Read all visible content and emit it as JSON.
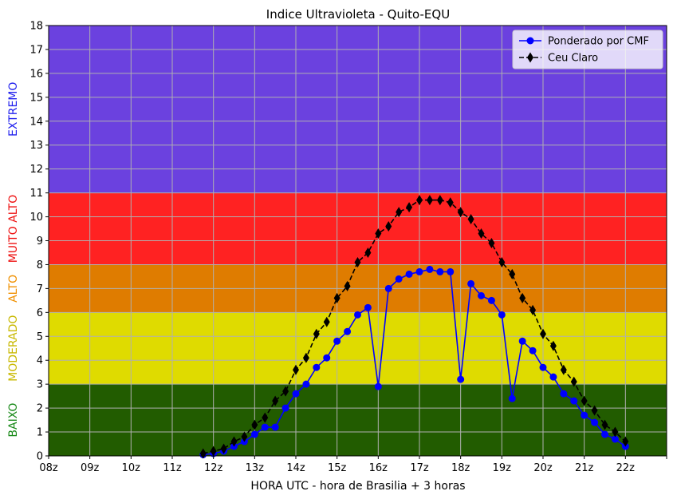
{
  "chart_data": {
    "type": "line",
    "title": "Indice Ultravioleta - Quito-EQU",
    "xlabel": "HORA UTC - hora de Brasilia + 3 horas",
    "ylabel": "",
    "xlim": [
      8,
      23
    ],
    "ylim": [
      0,
      18
    ],
    "x_ticks": [
      {
        "value": 8,
        "label": "08z"
      },
      {
        "value": 9,
        "label": "09z"
      },
      {
        "value": 10,
        "label": "10z"
      },
      {
        "value": 11,
        "label": "11z"
      },
      {
        "value": 12,
        "label": "12z"
      },
      {
        "value": 13,
        "label": "13z"
      },
      {
        "value": 14,
        "label": "14z"
      },
      {
        "value": 15,
        "label": "15z"
      },
      {
        "value": 16,
        "label": "16z"
      },
      {
        "value": 17,
        "label": "17z"
      },
      {
        "value": 18,
        "label": "18z"
      },
      {
        "value": 19,
        "label": "19z"
      },
      {
        "value": 20,
        "label": "20z"
      },
      {
        "value": 21,
        "label": "21z"
      },
      {
        "value": 22,
        "label": "22z"
      },
      {
        "value": 23,
        "label": ""
      }
    ],
    "y_ticks": [
      0,
      1,
      2,
      3,
      4,
      5,
      6,
      7,
      8,
      9,
      10,
      11,
      12,
      13,
      14,
      15,
      16,
      17,
      18
    ],
    "grid": true,
    "legend_position": "top-right",
    "bands": [
      {
        "label": "BAIXO",
        "from": 0,
        "to": 3,
        "color": "#225c00",
        "label_color": "#1a8a1a"
      },
      {
        "label": "MODERADO",
        "from": 3,
        "to": 6,
        "color": "#dfdb00",
        "label_color": "#c8b800"
      },
      {
        "label": "ALTO",
        "from": 6,
        "to": 8,
        "color": "#df7c00",
        "label_color": "#f09000"
      },
      {
        "label": "MUITO ALTO",
        "from": 8,
        "to": 11,
        "color": "#ff2222",
        "label_color": "#ee1111"
      },
      {
        "label": "EXTREMO",
        "from": 11,
        "to": 18,
        "color": "#6b41df",
        "label_color": "#2222ee"
      }
    ],
    "series": [
      {
        "name": "Ponderado por CMF",
        "color": "#0000ff",
        "marker": "circle",
        "linestyle": "solid",
        "x": [
          11.75,
          12.0,
          12.25,
          12.5,
          12.75,
          13.0,
          13.25,
          13.5,
          13.75,
          14.0,
          14.25,
          14.5,
          14.75,
          15.0,
          15.25,
          15.5,
          15.75,
          16.0,
          16.25,
          16.5,
          16.75,
          17.0,
          17.25,
          17.5,
          17.75,
          18.0,
          18.25,
          18.5,
          18.75,
          19.0,
          19.25,
          19.5,
          19.75,
          20.0,
          20.25,
          20.5,
          20.75,
          21.0,
          21.25,
          21.5,
          21.75,
          22.0
        ],
        "y": [
          0.05,
          0.1,
          0.2,
          0.4,
          0.6,
          0.9,
          1.2,
          1.2,
          2.0,
          2.6,
          3.0,
          3.7,
          4.1,
          4.8,
          5.2,
          5.9,
          6.2,
          2.9,
          7.0,
          7.4,
          7.6,
          7.7,
          7.8,
          7.7,
          7.7,
          3.2,
          7.2,
          6.7,
          6.5,
          5.9,
          2.4,
          4.8,
          4.4,
          3.7,
          3.3,
          2.6,
          2.3,
          1.7,
          1.4,
          0.9,
          0.7,
          0.4
        ]
      },
      {
        "name": "Ceu Claro",
        "color": "#000000",
        "marker": "diamond",
        "linestyle": "dashed",
        "x": [
          11.75,
          12.0,
          12.25,
          12.5,
          12.75,
          13.0,
          13.25,
          13.5,
          13.75,
          14.0,
          14.25,
          14.5,
          14.75,
          15.0,
          15.25,
          15.5,
          15.75,
          16.0,
          16.25,
          16.5,
          16.75,
          17.0,
          17.25,
          17.5,
          17.75,
          18.0,
          18.25,
          18.5,
          18.75,
          19.0,
          19.25,
          19.5,
          19.75,
          20.0,
          20.25,
          20.5,
          20.75,
          21.0,
          21.25,
          21.5,
          21.75,
          22.0
        ],
        "y": [
          0.1,
          0.2,
          0.3,
          0.6,
          0.8,
          1.3,
          1.6,
          2.3,
          2.7,
          3.6,
          4.1,
          5.1,
          5.6,
          6.6,
          7.1,
          8.1,
          8.5,
          9.3,
          9.6,
          10.2,
          10.4,
          10.7,
          10.7,
          10.7,
          10.6,
          10.2,
          9.9,
          9.3,
          8.9,
          8.1,
          7.6,
          6.6,
          6.1,
          5.1,
          4.6,
          3.6,
          3.1,
          2.3,
          1.9,
          1.3,
          1.0,
          0.6
        ]
      }
    ]
  }
}
